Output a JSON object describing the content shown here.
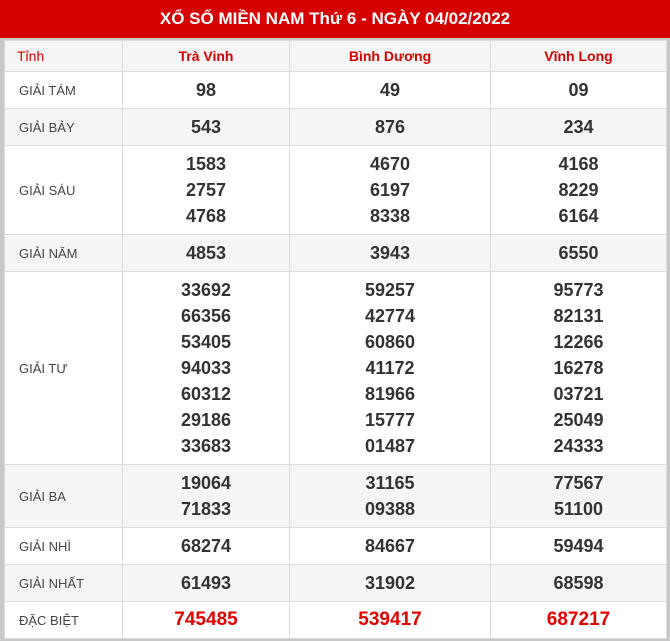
{
  "title": "XỔ SỐ MIỀN NAM Thứ 6 - NGÀY 04/02/2022",
  "header": {
    "tinh": "Tỉnh",
    "provinces": [
      "Trà Vinh",
      "Bình Dương",
      "Vĩnh Long"
    ]
  },
  "colors": {
    "brand": "#d50000",
    "special": "#e00000"
  },
  "rows": [
    {
      "label": "GIẢI TÁM",
      "values": [
        [
          "98"
        ],
        [
          "49"
        ],
        [
          "09"
        ]
      ]
    },
    {
      "label": "GIẢI BẢY",
      "values": [
        [
          "543"
        ],
        [
          "876"
        ],
        [
          "234"
        ]
      ]
    },
    {
      "label": "GIẢI SÁU",
      "values": [
        [
          "1583",
          "2757",
          "4768"
        ],
        [
          "4670",
          "6197",
          "8338"
        ],
        [
          "4168",
          "8229",
          "6164"
        ]
      ]
    },
    {
      "label": "GIẢI NĂM",
      "values": [
        [
          "4853"
        ],
        [
          "3943"
        ],
        [
          "6550"
        ]
      ]
    },
    {
      "label": "GIẢI TƯ",
      "values": [
        [
          "33692",
          "66356",
          "53405",
          "94033",
          "60312",
          "29186",
          "33683"
        ],
        [
          "59257",
          "42774",
          "60860",
          "41172",
          "81966",
          "15777",
          "01487"
        ],
        [
          "95773",
          "82131",
          "12266",
          "16278",
          "03721",
          "25049",
          "24333"
        ]
      ]
    },
    {
      "label": "GIẢI BA",
      "values": [
        [
          "19064",
          "71833"
        ],
        [
          "31165",
          "09388"
        ],
        [
          "77567",
          "51100"
        ]
      ]
    },
    {
      "label": "GIẢI NHÌ",
      "values": [
        [
          "68274"
        ],
        [
          "84667"
        ],
        [
          "59494"
        ]
      ]
    },
    {
      "label": "GIẢI NHẤT",
      "values": [
        [
          "61493"
        ],
        [
          "31902"
        ],
        [
          "68598"
        ]
      ]
    },
    {
      "label": "ĐẶC BIỆT",
      "values": [
        [
          "745485"
        ],
        [
          "539417"
        ],
        [
          "687217"
        ]
      ],
      "special": true
    }
  ]
}
